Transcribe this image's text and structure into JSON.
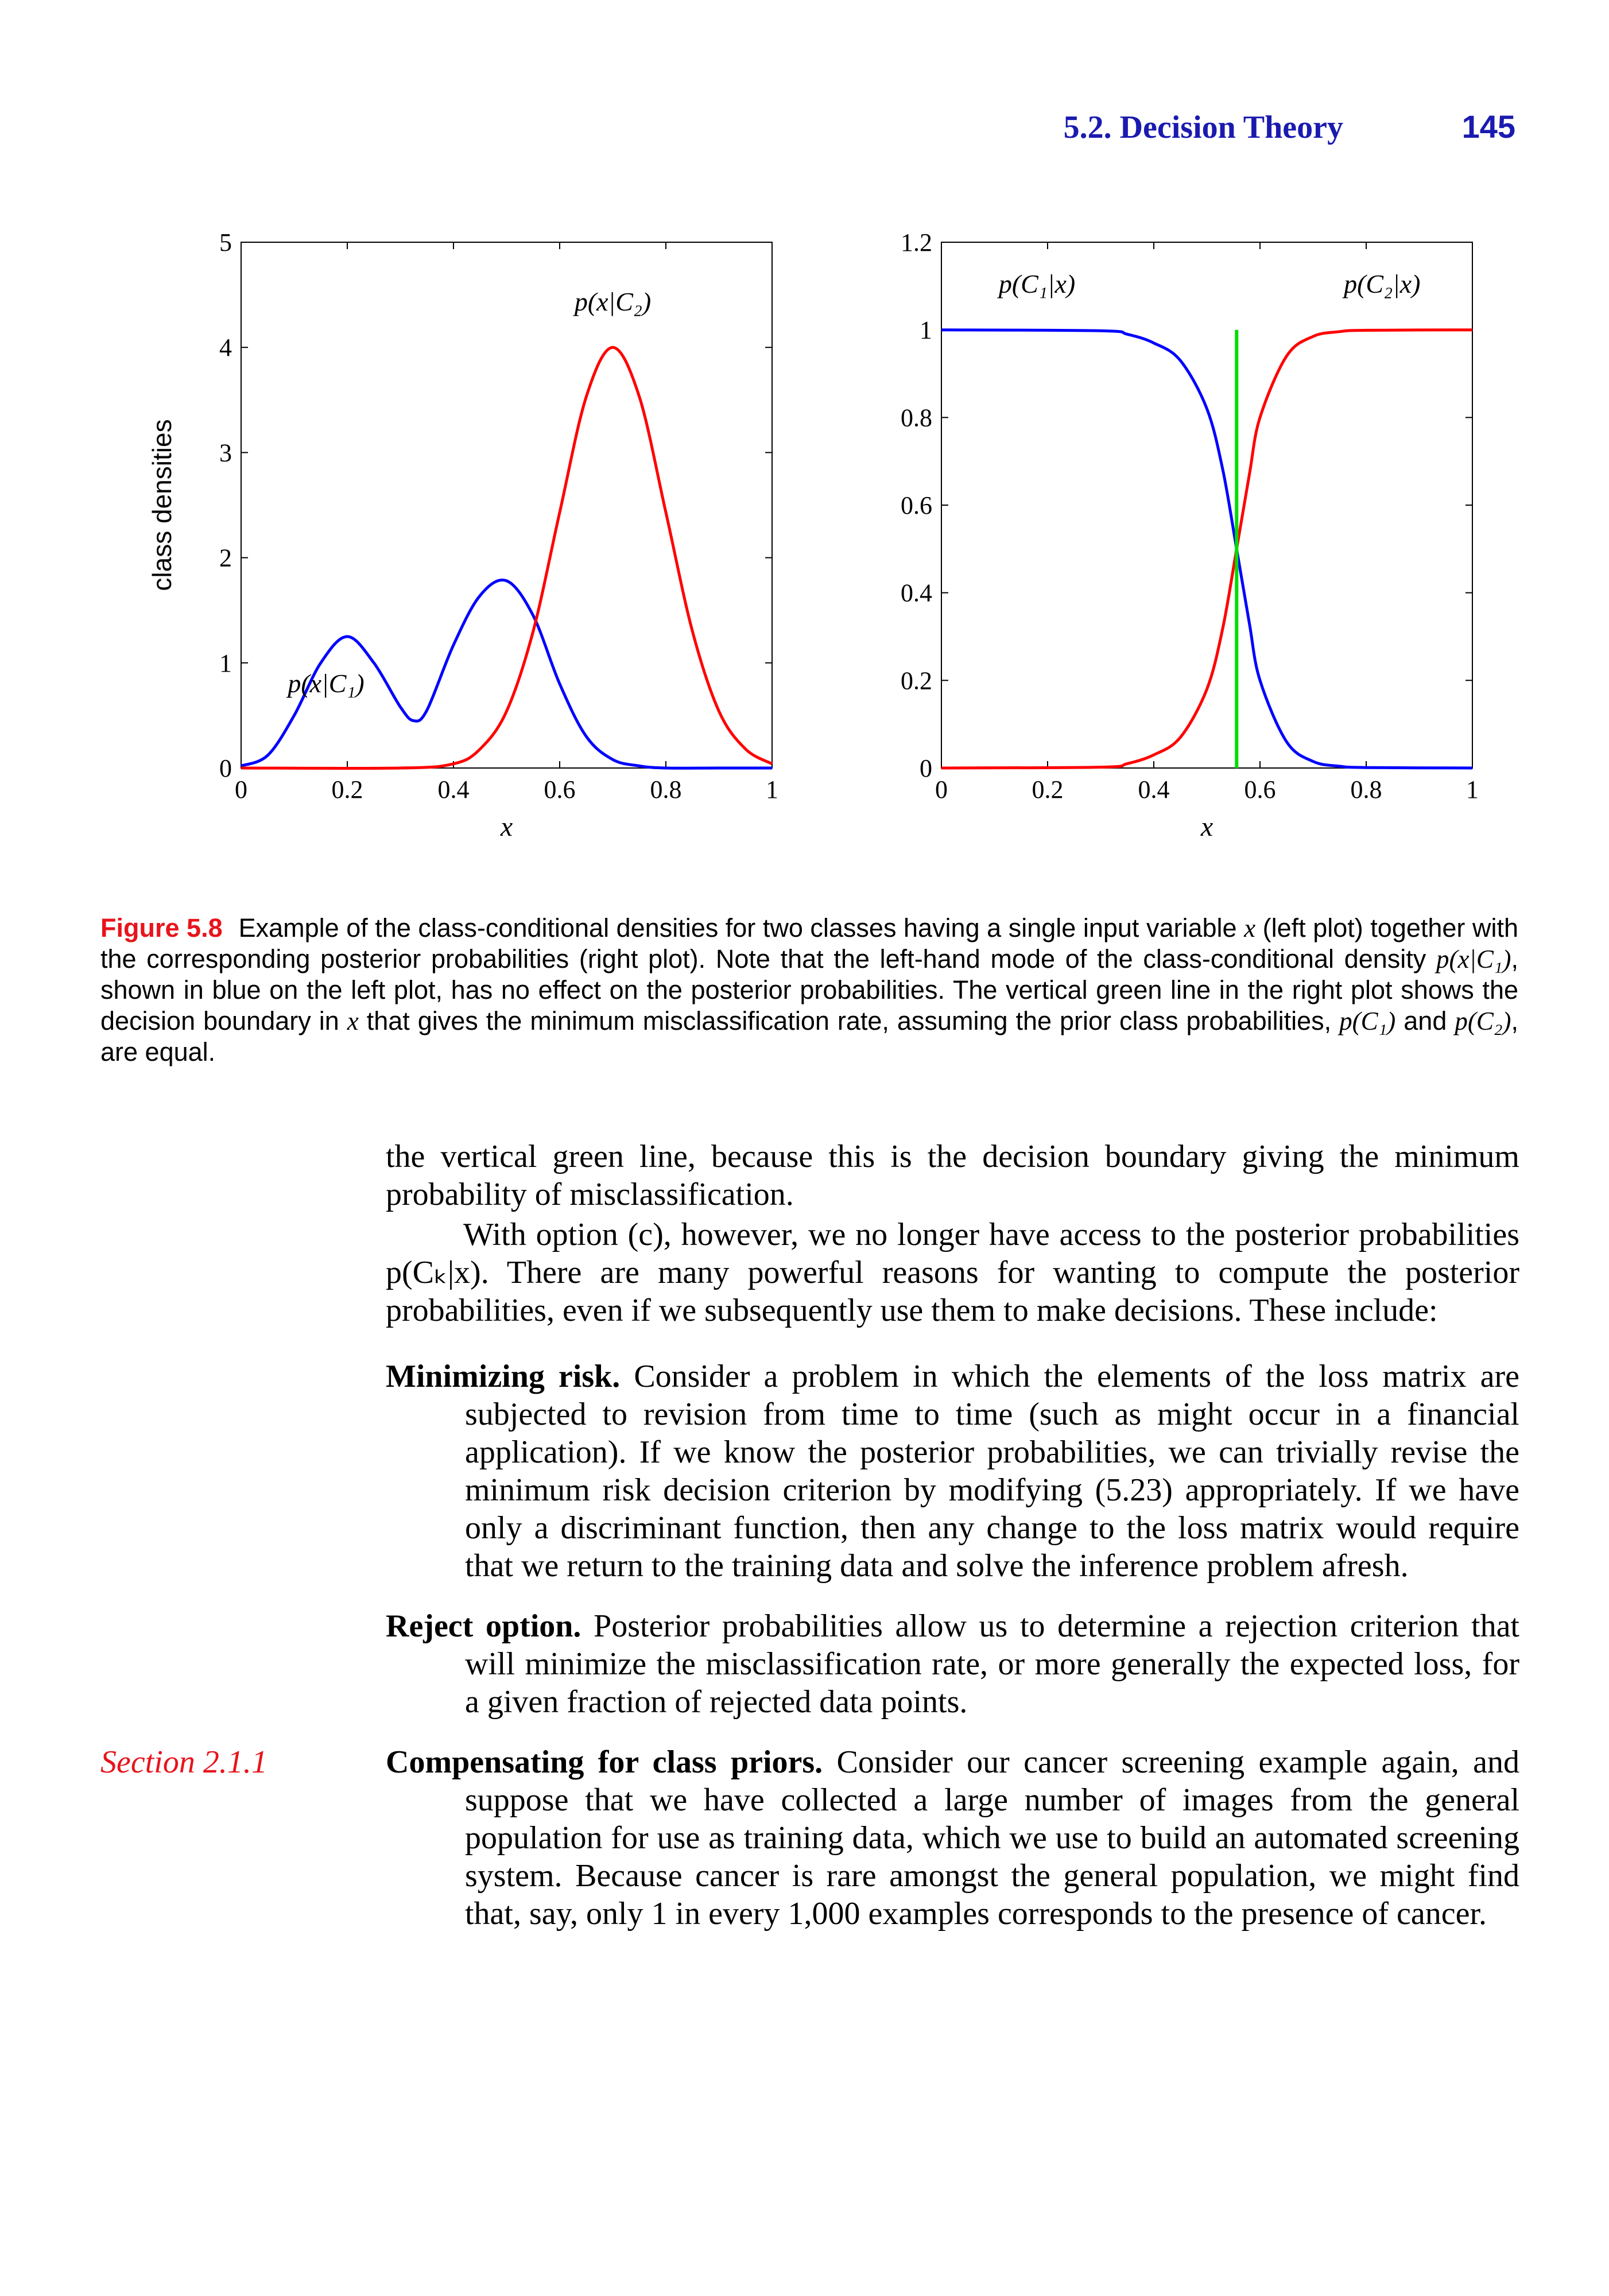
{
  "header": {
    "section_title": "5.2. Decision Theory",
    "page_number": "145"
  },
  "figure": {
    "label": "Figure 5.8",
    "caption_parts": [
      "Example of the class-conditional densities for two classes having a single input variable ",
      "x",
      " (left plot) together with the corresponding posterior probabilities (right plot).  Note that the left-hand mode of the class-conditional density ",
      "p(x|C₁)",
      ", shown in blue on the left plot, has no effect on the posterior probabilities. The vertical green line in the right plot shows the decision boundary in ",
      "x",
      " that gives the minimum misclassification rate, assuming the prior class probabilities, ",
      "p(C₁)",
      " and ",
      "p(C₂)",
      ", are equal."
    ]
  },
  "chart_data": [
    {
      "type": "line",
      "xlabel": "x",
      "ylabel": "class densities",
      "xlim": [
        0,
        1
      ],
      "ylim": [
        0,
        5
      ],
      "xticks": [
        "0",
        "0.2",
        "0.4",
        "0.6",
        "0.8",
        "1"
      ],
      "yticks": [
        "0",
        "1",
        "2",
        "3",
        "4",
        "5"
      ],
      "grid": false,
      "series": [
        {
          "name": "p(x|C₁)",
          "color": "#0000ff",
          "x": [
            0,
            0.05,
            0.1,
            0.15,
            0.2,
            0.25,
            0.3,
            0.325,
            0.35,
            0.4,
            0.45,
            0.5,
            0.55,
            0.6,
            0.65,
            0.7,
            0.75,
            0.8,
            0.9,
            1.0
          ],
          "y": [
            0.02,
            0.12,
            0.5,
            1.0,
            1.25,
            1.0,
            0.58,
            0.45,
            0.55,
            1.17,
            1.64,
            1.78,
            1.45,
            0.8,
            0.3,
            0.08,
            0.02,
            0.0,
            0.0,
            0.0
          ]
        },
        {
          "name": "p(x|C₂)",
          "color": "#ff0000",
          "x": [
            0,
            0.3,
            0.4,
            0.45,
            0.5,
            0.55,
            0.6,
            0.65,
            0.7,
            0.75,
            0.8,
            0.85,
            0.9,
            0.95,
            1.0
          ],
          "y": [
            0.0,
            0.0,
            0.04,
            0.18,
            0.54,
            1.3,
            2.43,
            3.53,
            4.0,
            3.53,
            2.43,
            1.3,
            0.54,
            0.18,
            0.04
          ]
        }
      ]
    },
    {
      "type": "line",
      "xlabel": "x",
      "ylabel": "",
      "xlim": [
        0,
        1
      ],
      "ylim": [
        0,
        1.2
      ],
      "xticks": [
        "0",
        "0.2",
        "0.4",
        "0.6",
        "0.8",
        "1"
      ],
      "yticks": [
        "0",
        "0.2",
        "0.4",
        "0.6",
        "0.8",
        "1",
        "1.2"
      ],
      "grid": false,
      "series": [
        {
          "name": "p(C₁|x)",
          "color": "#0000ff",
          "x": [
            0,
            0.3,
            0.35,
            0.4,
            0.45,
            0.5,
            0.53,
            0.556,
            0.58,
            0.6,
            0.65,
            0.7,
            0.75,
            0.8,
            1.0
          ],
          "y": [
            1.0,
            0.998,
            0.99,
            0.97,
            0.93,
            0.82,
            0.68,
            0.5,
            0.33,
            0.2,
            0.06,
            0.015,
            0.004,
            0.001,
            0.0
          ]
        },
        {
          "name": "p(C₂|x)",
          "color": "#ff0000",
          "x": [
            0,
            0.3,
            0.35,
            0.4,
            0.45,
            0.5,
            0.53,
            0.556,
            0.58,
            0.6,
            0.65,
            0.7,
            0.75,
            0.8,
            1.0
          ],
          "y": [
            0.0,
            0.002,
            0.01,
            0.03,
            0.07,
            0.18,
            0.32,
            0.5,
            0.67,
            0.8,
            0.94,
            0.985,
            0.996,
            0.999,
            1.0
          ]
        }
      ],
      "decision_boundary": {
        "x": 0.556,
        "y_range": [
          0,
          1.0
        ],
        "color": "#00dd00"
      }
    }
  ],
  "body": {
    "para1": "the vertical green line, because this is the decision boundary giving the minimum probability of misclassification.",
    "para2": "With option (c), however, we no longer have access to the posterior probabilities p(Cₖ|x).  There are many powerful reasons for wanting to compute the posterior probabilities, even if we subsequently use them to make decisions. These include:",
    "items": [
      {
        "title": "Minimizing risk.",
        "text": " Consider a problem in which the elements of the loss matrix are subjected to revision from time to time (such as might occur in a financial application). If we know the posterior probabilities, we can trivially revise the minimum risk decision criterion by modifying (5.23) appropriately. If we have only a discriminant function, then any change to the loss matrix would require that we return to the training data and solve the inference problem afresh."
      },
      {
        "title": "Reject option.",
        "text": " Posterior probabilities allow us to determine a rejection criterion that will minimize the misclassification rate, or more generally the expected loss, for a given fraction of rejected data points."
      },
      {
        "title": "Compensating for class priors.",
        "text": " Consider our cancer screening example again, and suppose that we have collected a large number of images from the general population for use as training data, which we use to build an automated screening system. Because cancer is rare amongst the general population, we might find that, say, only 1 in every 1,000 examples corresponds to the presence of cancer."
      }
    ],
    "margin_ref": "Section 2.1.1"
  },
  "colors": {
    "header_blue": "#1a1ab0",
    "caption_red": "#e8141c"
  }
}
